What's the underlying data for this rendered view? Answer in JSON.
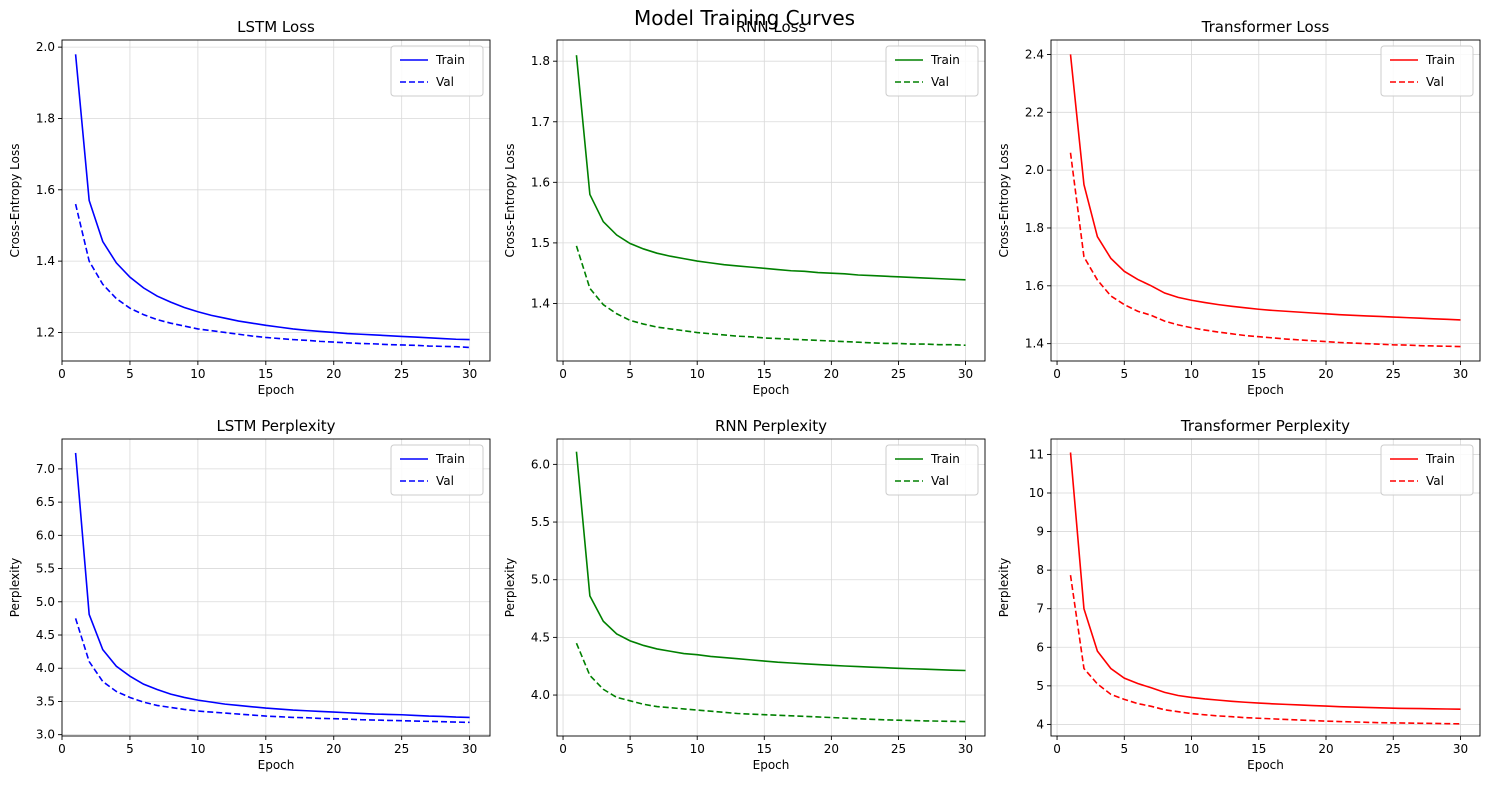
{
  "figure": {
    "title": "Model Training Curves"
  },
  "chart_data": [
    {
      "type": "line",
      "title": "LSTM Loss",
      "xlabel": "Epoch",
      "ylabel": "Cross-Entropy Loss",
      "xlim": [
        0,
        31.5
      ],
      "ylim": [
        1.12,
        2.02
      ],
      "xticks": [
        0,
        5,
        10,
        15,
        20,
        25,
        30
      ],
      "xtick_labels": [
        "0",
        "5",
        "10",
        "15",
        "20",
        "25",
        "30"
      ],
      "yticks": [
        1.2,
        1.4,
        1.6,
        1.8,
        2.0
      ],
      "ytick_labels": [
        "1.2",
        "1.4",
        "1.6",
        "1.8",
        "2.0"
      ],
      "grid": true,
      "legend_position": "top-right",
      "color": "#0000ff",
      "x": [
        1,
        2,
        3,
        4,
        5,
        6,
        7,
        8,
        9,
        10,
        11,
        12,
        13,
        14,
        15,
        16,
        17,
        18,
        19,
        20,
        21,
        22,
        23,
        24,
        25,
        26,
        27,
        28,
        29,
        30
      ],
      "series": [
        {
          "name": "Train",
          "dash": "solid",
          "values": [
            1.98,
            1.57,
            1.455,
            1.395,
            1.355,
            1.325,
            1.302,
            1.285,
            1.27,
            1.258,
            1.248,
            1.24,
            1.232,
            1.226,
            1.22,
            1.215,
            1.21,
            1.206,
            1.203,
            1.2,
            1.197,
            1.195,
            1.193,
            1.191,
            1.189,
            1.187,
            1.185,
            1.183,
            1.181,
            1.18
          ]
        },
        {
          "name": "Val",
          "dash": "dashed",
          "values": [
            1.56,
            1.4,
            1.335,
            1.295,
            1.268,
            1.25,
            1.236,
            1.226,
            1.218,
            1.21,
            1.205,
            1.2,
            1.195,
            1.19,
            1.186,
            1.183,
            1.18,
            1.178,
            1.175,
            1.173,
            1.171,
            1.169,
            1.168,
            1.166,
            1.165,
            1.164,
            1.162,
            1.161,
            1.16,
            1.158
          ]
        }
      ]
    },
    {
      "type": "line",
      "title": "RNN Loss",
      "xlabel": "Epoch",
      "ylabel": "Cross-Entropy Loss",
      "xlim": [
        -0.45,
        31.45
      ],
      "ylim": [
        1.305,
        1.835
      ],
      "xticks": [
        0,
        5,
        10,
        15,
        20,
        25,
        30
      ],
      "xtick_labels": [
        "0",
        "5",
        "10",
        "15",
        "20",
        "25",
        "30"
      ],
      "yticks": [
        1.4,
        1.5,
        1.6,
        1.7,
        1.8
      ],
      "ytick_labels": [
        "1.4",
        "1.5",
        "1.6",
        "1.7",
        "1.8"
      ],
      "grid": true,
      "legend_position": "top-right",
      "color": "#008000",
      "x": [
        1,
        2,
        3,
        4,
        5,
        6,
        7,
        8,
        9,
        10,
        11,
        12,
        13,
        14,
        15,
        16,
        17,
        18,
        19,
        20,
        21,
        22,
        23,
        24,
        25,
        26,
        27,
        28,
        29,
        30
      ],
      "series": [
        {
          "name": "Train",
          "dash": "solid",
          "values": [
            1.81,
            1.58,
            1.535,
            1.513,
            1.499,
            1.49,
            1.483,
            1.478,
            1.474,
            1.47,
            1.467,
            1.464,
            1.462,
            1.46,
            1.458,
            1.456,
            1.454,
            1.453,
            1.451,
            1.45,
            1.449,
            1.447,
            1.446,
            1.445,
            1.444,
            1.443,
            1.442,
            1.441,
            1.44,
            1.439
          ]
        },
        {
          "name": "Val",
          "dash": "dashed",
          "values": [
            1.495,
            1.425,
            1.398,
            1.383,
            1.372,
            1.366,
            1.361,
            1.358,
            1.355,
            1.352,
            1.35,
            1.348,
            1.346,
            1.345,
            1.343,
            1.342,
            1.341,
            1.34,
            1.339,
            1.338,
            1.337,
            1.336,
            1.335,
            1.334,
            1.334,
            1.333,
            1.333,
            1.332,
            1.332,
            1.331
          ]
        }
      ]
    },
    {
      "type": "line",
      "title": "Transformer Loss",
      "xlabel": "Epoch",
      "ylabel": "Cross-Entropy Loss",
      "xlim": [
        -0.45,
        31.45
      ],
      "ylim": [
        1.34,
        2.45
      ],
      "xticks": [
        0,
        5,
        10,
        15,
        20,
        25,
        30
      ],
      "xtick_labels": [
        "0",
        "5",
        "10",
        "15",
        "20",
        "25",
        "30"
      ],
      "yticks": [
        1.4,
        1.6,
        1.8,
        2.0,
        2.2,
        2.4
      ],
      "ytick_labels": [
        "1.4",
        "1.6",
        "1.8",
        "2.0",
        "2.2",
        "2.4"
      ],
      "grid": true,
      "legend_position": "top-right",
      "color": "#ff0000",
      "x": [
        1,
        2,
        3,
        4,
        5,
        6,
        7,
        8,
        9,
        10,
        11,
        12,
        13,
        14,
        15,
        16,
        17,
        18,
        19,
        20,
        21,
        22,
        23,
        24,
        25,
        26,
        27,
        28,
        29,
        30
      ],
      "series": [
        {
          "name": "Train",
          "dash": "solid",
          "values": [
            2.4,
            1.95,
            1.77,
            1.695,
            1.65,
            1.622,
            1.6,
            1.575,
            1.56,
            1.55,
            1.542,
            1.535,
            1.529,
            1.524,
            1.519,
            1.515,
            1.512,
            1.509,
            1.506,
            1.503,
            1.5,
            1.498,
            1.496,
            1.494,
            1.492,
            1.49,
            1.488,
            1.486,
            1.484,
            1.482
          ]
        },
        {
          "name": "Val",
          "dash": "dashed",
          "values": [
            2.06,
            1.7,
            1.62,
            1.565,
            1.535,
            1.512,
            1.498,
            1.478,
            1.465,
            1.455,
            1.447,
            1.44,
            1.434,
            1.428,
            1.424,
            1.42,
            1.416,
            1.413,
            1.41,
            1.407,
            1.404,
            1.402,
            1.4,
            1.398,
            1.396,
            1.395,
            1.393,
            1.392,
            1.391,
            1.39
          ]
        }
      ]
    },
    {
      "type": "line",
      "title": "LSTM Perplexity",
      "xlabel": "Epoch",
      "ylabel": "Perplexity",
      "xlim": [
        0,
        31.5
      ],
      "ylim": [
        2.98,
        7.45
      ],
      "xticks": [
        0,
        5,
        10,
        15,
        20,
        25,
        30
      ],
      "xtick_labels": [
        "0",
        "5",
        "10",
        "15",
        "20",
        "25",
        "30"
      ],
      "yticks": [
        3.0,
        3.5,
        4.0,
        4.5,
        5.0,
        5.5,
        6.0,
        6.5,
        7.0
      ],
      "ytick_labels": [
        "3.0",
        "3.5",
        "4.0",
        "4.5",
        "5.0",
        "5.5",
        "6.0",
        "6.5",
        "7.0"
      ],
      "grid": true,
      "legend_position": "top-right",
      "color": "#0000ff",
      "x": [
        1,
        2,
        3,
        4,
        5,
        6,
        7,
        8,
        9,
        10,
        11,
        12,
        13,
        14,
        15,
        16,
        17,
        18,
        19,
        20,
        21,
        22,
        23,
        24,
        25,
        26,
        27,
        28,
        29,
        30
      ],
      "series": [
        {
          "name": "Train",
          "dash": "solid",
          "values": [
            7.24,
            4.81,
            4.28,
            4.03,
            3.88,
            3.76,
            3.68,
            3.61,
            3.56,
            3.52,
            3.49,
            3.46,
            3.44,
            3.42,
            3.4,
            3.385,
            3.37,
            3.36,
            3.35,
            3.34,
            3.33,
            3.32,
            3.31,
            3.305,
            3.3,
            3.29,
            3.28,
            3.275,
            3.265,
            3.26
          ]
        },
        {
          "name": "Val",
          "dash": "dashed",
          "values": [
            4.75,
            4.1,
            3.8,
            3.65,
            3.56,
            3.49,
            3.44,
            3.41,
            3.38,
            3.355,
            3.34,
            3.325,
            3.31,
            3.295,
            3.28,
            3.27,
            3.26,
            3.255,
            3.245,
            3.24,
            3.235,
            3.225,
            3.22,
            3.215,
            3.21,
            3.205,
            3.2,
            3.195,
            3.19,
            3.185
          ]
        }
      ]
    },
    {
      "type": "line",
      "title": "RNN Perplexity",
      "xlabel": "Epoch",
      "ylabel": "Perplexity",
      "xlim": [
        -0.45,
        31.45
      ],
      "ylim": [
        3.645,
        6.22
      ],
      "xticks": [
        0,
        5,
        10,
        15,
        20,
        25,
        30
      ],
      "xtick_labels": [
        "0",
        "5",
        "10",
        "15",
        "20",
        "25",
        "30"
      ],
      "yticks": [
        4.0,
        4.5,
        5.0,
        5.5,
        6.0
      ],
      "ytick_labels": [
        "4.0",
        "4.5",
        "5.0",
        "5.5",
        "6.0"
      ],
      "grid": true,
      "legend_position": "top-right",
      "color": "#008000",
      "x": [
        1,
        2,
        3,
        4,
        5,
        6,
        7,
        8,
        9,
        10,
        11,
        12,
        13,
        14,
        15,
        16,
        17,
        18,
        19,
        20,
        21,
        22,
        23,
        24,
        25,
        26,
        27,
        28,
        29,
        30
      ],
      "series": [
        {
          "name": "Train",
          "dash": "solid",
          "values": [
            6.11,
            4.86,
            4.64,
            4.53,
            4.47,
            4.43,
            4.4,
            4.38,
            4.36,
            4.35,
            4.335,
            4.325,
            4.315,
            4.305,
            4.295,
            4.285,
            4.278,
            4.271,
            4.264,
            4.258,
            4.252,
            4.247,
            4.242,
            4.237,
            4.232,
            4.228,
            4.224,
            4.22,
            4.216,
            4.213
          ]
        },
        {
          "name": "Val",
          "dash": "dashed",
          "values": [
            4.45,
            4.17,
            4.05,
            3.98,
            3.95,
            3.92,
            3.9,
            3.89,
            3.88,
            3.87,
            3.86,
            3.85,
            3.84,
            3.835,
            3.83,
            3.825,
            3.82,
            3.815,
            3.81,
            3.805,
            3.8,
            3.795,
            3.79,
            3.785,
            3.782,
            3.779,
            3.776,
            3.774,
            3.772,
            3.77
          ]
        }
      ]
    },
    {
      "type": "line",
      "title": "Transformer Perplexity",
      "xlabel": "Epoch",
      "ylabel": "Perplexity",
      "xlim": [
        -0.45,
        31.45
      ],
      "ylim": [
        3.7,
        11.4
      ],
      "xticks": [
        0,
        5,
        10,
        15,
        20,
        25,
        30
      ],
      "xtick_labels": [
        "0",
        "5",
        "10",
        "15",
        "20",
        "25",
        "30"
      ],
      "yticks": [
        4,
        5,
        6,
        7,
        8,
        9,
        10,
        11
      ],
      "ytick_labels": [
        "4",
        "5",
        "6",
        "7",
        "8",
        "9",
        "10",
        "11"
      ],
      "grid": true,
      "legend_position": "top-right",
      "color": "#ff0000",
      "x": [
        1,
        2,
        3,
        4,
        5,
        6,
        7,
        8,
        9,
        10,
        11,
        12,
        13,
        14,
        15,
        16,
        17,
        18,
        19,
        20,
        21,
        22,
        23,
        24,
        25,
        26,
        27,
        28,
        29,
        30
      ],
      "series": [
        {
          "name": "Train",
          "dash": "solid",
          "values": [
            11.05,
            7.0,
            5.9,
            5.45,
            5.2,
            5.06,
            4.95,
            4.83,
            4.75,
            4.7,
            4.66,
            4.63,
            4.6,
            4.575,
            4.555,
            4.535,
            4.52,
            4.505,
            4.49,
            4.475,
            4.46,
            4.45,
            4.44,
            4.43,
            4.42,
            4.415,
            4.41,
            4.405,
            4.4,
            4.395
          ]
        },
        {
          "name": "Val",
          "dash": "dashed",
          "values": [
            7.87,
            5.45,
            5.05,
            4.78,
            4.65,
            4.54,
            4.47,
            4.38,
            4.33,
            4.28,
            4.25,
            4.22,
            4.2,
            4.175,
            4.16,
            4.145,
            4.13,
            4.115,
            4.1,
            4.085,
            4.075,
            4.065,
            4.055,
            4.045,
            4.04,
            4.035,
            4.03,
            4.025,
            4.02,
            4.015
          ]
        }
      ]
    }
  ]
}
